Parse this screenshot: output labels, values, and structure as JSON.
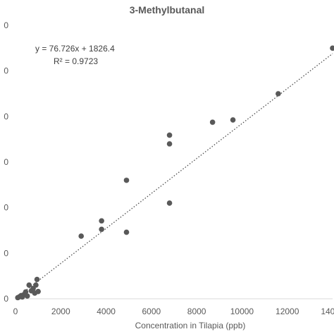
{
  "chart_data": {
    "type": "scatter",
    "title": "3-Methylbutanal",
    "xlabel": "Concentration in Tilapia (ppb)",
    "ylabel": "",
    "xlim": [
      0,
      14000
    ],
    "ylim": [
      0,
      1200000
    ],
    "x_ticks": [
      "0",
      "2000",
      "4000",
      "6000",
      "8000",
      "10000",
      "12000",
      "14000"
    ],
    "y_ticks": [
      "0",
      "0",
      "0",
      "0",
      "0",
      "0",
      "0"
    ],
    "grid": false,
    "trendline": {
      "style": "dotted",
      "slope": 76.726,
      "intercept": 1826.4,
      "equation": "y = 76.726x + 1826.4",
      "r2": "R² = 0.9723"
    },
    "points": [
      {
        "x": 100,
        "y": 5000
      },
      {
        "x": 180,
        "y": 9000
      },
      {
        "x": 250,
        "y": 14000
      },
      {
        "x": 300,
        "y": 8000
      },
      {
        "x": 400,
        "y": 20000
      },
      {
        "x": 450,
        "y": 30000
      },
      {
        "x": 520,
        "y": 12000
      },
      {
        "x": 600,
        "y": 60000
      },
      {
        "x": 700,
        "y": 35000
      },
      {
        "x": 780,
        "y": 45000
      },
      {
        "x": 850,
        "y": 25000
      },
      {
        "x": 900,
        "y": 60000
      },
      {
        "x": 950,
        "y": 85000
      },
      {
        "x": 1000,
        "y": 32000
      },
      {
        "x": 2900,
        "y": 275000
      },
      {
        "x": 3800,
        "y": 342000
      },
      {
        "x": 3800,
        "y": 305000
      },
      {
        "x": 4900,
        "y": 520000
      },
      {
        "x": 4900,
        "y": 292000
      },
      {
        "x": 6800,
        "y": 718000
      },
      {
        "x": 6800,
        "y": 680000
      },
      {
        "x": 6800,
        "y": 420000
      },
      {
        "x": 8700,
        "y": 775000
      },
      {
        "x": 9600,
        "y": 785000
      },
      {
        "x": 11600,
        "y": 900000
      },
      {
        "x": 14000,
        "y": 1100000
      }
    ]
  }
}
